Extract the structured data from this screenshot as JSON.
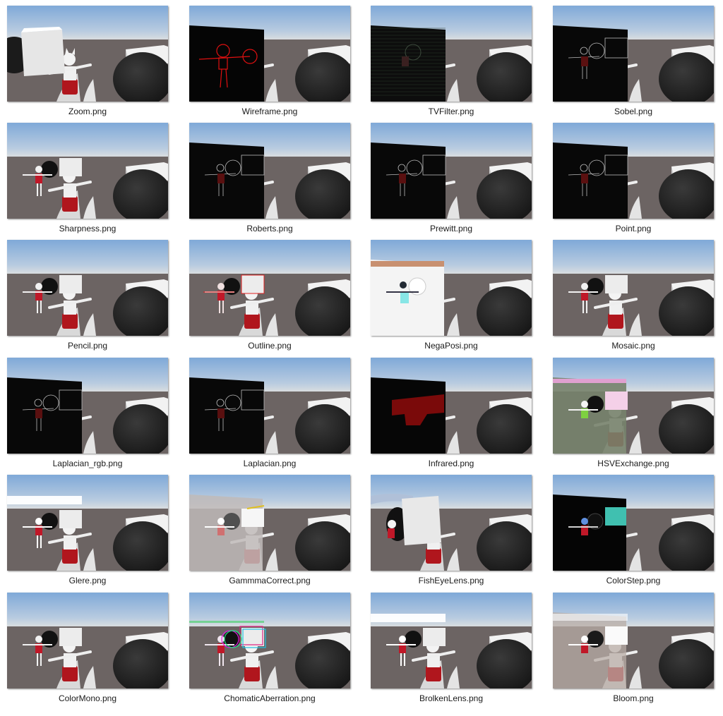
{
  "files": [
    {
      "name": "Zoom.png",
      "effect": "zoom"
    },
    {
      "name": "Wireframe.png",
      "effect": "wireframe"
    },
    {
      "name": "TVFilter.png",
      "effect": "tv"
    },
    {
      "name": "Sobel.png",
      "effect": "edge"
    },
    {
      "name": "Sharpness.png",
      "effect": "normal"
    },
    {
      "name": "Roberts.png",
      "effect": "edge"
    },
    {
      "name": "Prewitt.png",
      "effect": "edge"
    },
    {
      "name": "Point.png",
      "effect": "edge"
    },
    {
      "name": "Pencil.png",
      "effect": "normal"
    },
    {
      "name": "Outline.png",
      "effect": "outline"
    },
    {
      "name": "NegaPosi.png",
      "effect": "negaposi"
    },
    {
      "name": "Mosaic.png",
      "effect": "normal"
    },
    {
      "name": "Laplacian_rgb.png",
      "effect": "edge"
    },
    {
      "name": "Laplacian.png",
      "effect": "edge"
    },
    {
      "name": "Infrared.png",
      "effect": "infrared"
    },
    {
      "name": "HSVExchange.png",
      "effect": "hsv"
    },
    {
      "name": "Glere.png",
      "effect": "glare"
    },
    {
      "name": "GammmaCorrect.png",
      "effect": "gamma"
    },
    {
      "name": "FishEyeLens.png",
      "effect": "fisheye"
    },
    {
      "name": "ColorStep.png",
      "effect": "colorstep"
    },
    {
      "name": "ColorMono.png",
      "effect": "normal"
    },
    {
      "name": "ChomaticAberration.png",
      "effect": "chromatic"
    },
    {
      "name": "BrolkenLens.png",
      "effect": "glare"
    },
    {
      "name": "Bloom.png",
      "effect": "bloom"
    }
  ],
  "colors": {
    "sky_top": "#7fa9d8",
    "sky_horizon": "#d9dde0",
    "ground": "#6c6463",
    "box": "#ececec",
    "sphere": "#151515"
  }
}
